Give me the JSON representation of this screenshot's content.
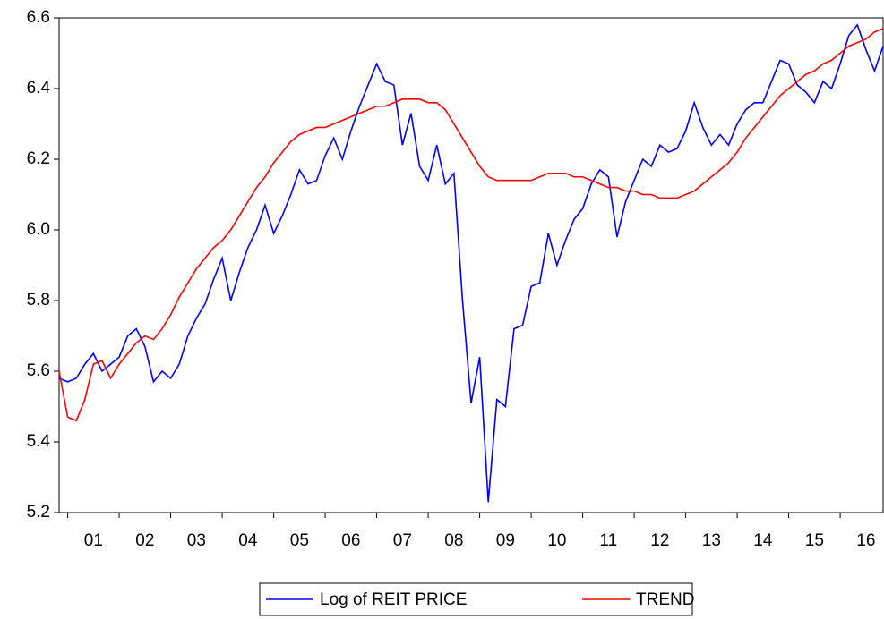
{
  "chart_data": {
    "type": "line",
    "categories": [
      null,
      null,
      null,
      null,
      "01",
      null,
      null,
      null,
      null,
      null,
      "02",
      null,
      null,
      null,
      null,
      null,
      "03",
      null,
      null,
      null,
      null,
      null,
      "04",
      null,
      null,
      null,
      null,
      null,
      "05",
      null,
      null,
      null,
      null,
      null,
      "06",
      null,
      null,
      null,
      null,
      null,
      "07",
      null,
      null,
      null,
      null,
      null,
      "08",
      null,
      null,
      null,
      null,
      null,
      "09",
      null,
      null,
      null,
      null,
      null,
      "10",
      null,
      null,
      null,
      null,
      null,
      "11",
      null,
      null,
      null,
      null,
      null,
      "12",
      null,
      null,
      null,
      null,
      null,
      "13",
      null,
      null,
      null,
      null,
      null,
      "14",
      null,
      null,
      null,
      null,
      null,
      "15",
      null,
      null,
      null,
      null,
      null,
      "16",
      null,
      null
    ],
    "series": [
      {
        "name": "Log of REIT PRICE",
        "color": "#0000ff",
        "values": [
          5.58,
          5.57,
          5.58,
          5.62,
          5.65,
          5.6,
          5.62,
          5.64,
          5.7,
          5.72,
          5.67,
          5.57,
          5.6,
          5.58,
          5.62,
          5.7,
          5.75,
          5.79,
          5.86,
          5.92,
          5.8,
          5.88,
          5.95,
          6.0,
          6.07,
          5.99,
          6.04,
          6.1,
          6.17,
          6.13,
          6.14,
          6.21,
          6.26,
          6.2,
          6.28,
          6.35,
          6.41,
          6.47,
          6.42,
          6.41,
          6.24,
          6.33,
          6.18,
          6.14,
          6.24,
          6.13,
          6.16,
          5.8,
          5.51,
          5.64,
          5.23,
          5.52,
          5.5,
          5.72,
          5.73,
          5.84,
          5.85,
          5.99,
          5.9,
          5.97,
          6.03,
          6.06,
          6.13,
          6.17,
          6.15,
          5.98,
          6.08,
          6.14,
          6.2,
          6.18,
          6.24,
          6.22,
          6.23,
          6.28,
          6.36,
          6.29,
          6.24,
          6.27,
          6.24,
          6.3,
          6.34,
          6.36,
          6.36,
          6.42,
          6.48,
          6.47,
          6.41,
          6.39,
          6.36,
          6.42,
          6.4,
          6.47,
          6.55,
          6.58,
          6.51,
          6.45,
          6.52
        ]
      },
      {
        "name": "TREND",
        "color": "#ff0000",
        "values": [
          5.6,
          5.47,
          5.46,
          5.52,
          5.62,
          5.63,
          5.58,
          5.62,
          5.65,
          5.68,
          5.7,
          5.69,
          5.72,
          5.76,
          5.81,
          5.85,
          5.89,
          5.92,
          5.95,
          5.97,
          6.0,
          6.04,
          6.08,
          6.12,
          6.15,
          6.19,
          6.22,
          6.25,
          6.27,
          6.28,
          6.29,
          6.29,
          6.3,
          6.31,
          6.32,
          6.33,
          6.34,
          6.35,
          6.35,
          6.36,
          6.37,
          6.37,
          6.37,
          6.36,
          6.36,
          6.34,
          6.3,
          6.26,
          6.22,
          6.18,
          6.15,
          6.14,
          6.14,
          6.14,
          6.14,
          6.14,
          6.15,
          6.16,
          6.16,
          6.16,
          6.15,
          6.15,
          6.14,
          6.13,
          6.12,
          6.12,
          6.11,
          6.11,
          6.1,
          6.1,
          6.09,
          6.09,
          6.09,
          6.1,
          6.11,
          6.13,
          6.15,
          6.17,
          6.19,
          6.22,
          6.26,
          6.29,
          6.32,
          6.35,
          6.38,
          6.4,
          6.42,
          6.44,
          6.45,
          6.47,
          6.48,
          6.5,
          6.52,
          6.53,
          6.54,
          6.56,
          6.57
        ]
      }
    ],
    "ylim": [
      5.2,
      6.6
    ],
    "yticks": [
      5.2,
      5.4,
      5.6,
      5.8,
      {
        "value": 6,
        "label": "6.0"
      },
      6.2,
      6.4,
      6.6
    ],
    "grid": false
  }
}
